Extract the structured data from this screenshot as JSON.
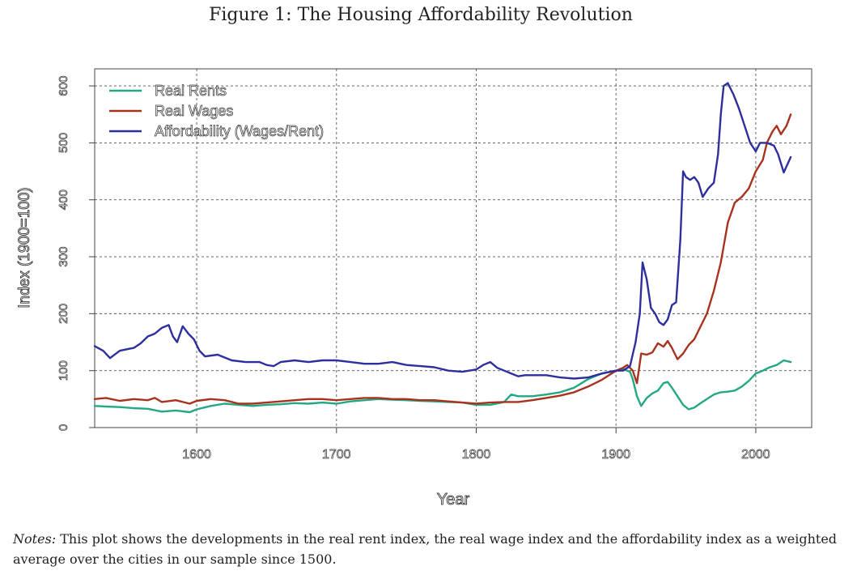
{
  "figure": {
    "title": "Figure 1: The Housing Affordability Revolution",
    "notes_lead": "Notes:",
    "notes_text": " This plot shows the developments in the real rent index, the real wage index and the affordability index as a weighted average over the cities in our sample since 1500."
  },
  "chart_data": {
    "type": "line",
    "xlabel": "Year",
    "ylabel": "Index (1900=100)",
    "xlim": [
      1527,
      2040
    ],
    "ylim": [
      0,
      630
    ],
    "xticks": [
      1600,
      1700,
      1800,
      1900,
      2000
    ],
    "yticks": [
      0,
      100,
      200,
      300,
      400,
      500,
      600
    ],
    "grid": true,
    "legend": "top-left",
    "series": [
      {
        "name": "Real Rents",
        "color": "#22a884",
        "points": [
          [
            1527,
            38
          ],
          [
            1535,
            37
          ],
          [
            1545,
            36
          ],
          [
            1555,
            34
          ],
          [
            1565,
            33
          ],
          [
            1575,
            28
          ],
          [
            1585,
            30
          ],
          [
            1595,
            27
          ],
          [
            1600,
            32
          ],
          [
            1610,
            38
          ],
          [
            1620,
            42
          ],
          [
            1630,
            40
          ],
          [
            1640,
            38
          ],
          [
            1650,
            40
          ],
          [
            1660,
            41
          ],
          [
            1670,
            43
          ],
          [
            1680,
            42
          ],
          [
            1690,
            44
          ],
          [
            1700,
            42
          ],
          [
            1710,
            46
          ],
          [
            1720,
            48
          ],
          [
            1730,
            50
          ],
          [
            1740,
            49
          ],
          [
            1750,
            48
          ],
          [
            1760,
            47
          ],
          [
            1770,
            46
          ],
          [
            1780,
            45
          ],
          [
            1790,
            44
          ],
          [
            1800,
            40
          ],
          [
            1810,
            40
          ],
          [
            1820,
            45
          ],
          [
            1825,
            58
          ],
          [
            1830,
            55
          ],
          [
            1840,
            55
          ],
          [
            1850,
            58
          ],
          [
            1860,
            62
          ],
          [
            1870,
            70
          ],
          [
            1880,
            85
          ],
          [
            1890,
            95
          ],
          [
            1900,
            100
          ],
          [
            1905,
            103
          ],
          [
            1910,
            98
          ],
          [
            1912,
            85
          ],
          [
            1915,
            55
          ],
          [
            1918,
            38
          ],
          [
            1922,
            52
          ],
          [
            1926,
            60
          ],
          [
            1930,
            65
          ],
          [
            1934,
            78
          ],
          [
            1937,
            80
          ],
          [
            1940,
            70
          ],
          [
            1944,
            55
          ],
          [
            1948,
            40
          ],
          [
            1952,
            32
          ],
          [
            1956,
            35
          ],
          [
            1960,
            42
          ],
          [
            1965,
            50
          ],
          [
            1970,
            58
          ],
          [
            1975,
            62
          ],
          [
            1980,
            63
          ],
          [
            1985,
            65
          ],
          [
            1990,
            72
          ],
          [
            1995,
            82
          ],
          [
            2000,
            95
          ],
          [
            2005,
            100
          ],
          [
            2010,
            106
          ],
          [
            2015,
            110
          ],
          [
            2020,
            118
          ],
          [
            2025,
            115
          ]
        ]
      },
      {
        "name": "Real Wages",
        "color": "#a8321d",
        "points": [
          [
            1527,
            50
          ],
          [
            1535,
            52
          ],
          [
            1545,
            47
          ],
          [
            1555,
            50
          ],
          [
            1565,
            48
          ],
          [
            1570,
            52
          ],
          [
            1575,
            45
          ],
          [
            1585,
            48
          ],
          [
            1595,
            42
          ],
          [
            1600,
            47
          ],
          [
            1610,
            50
          ],
          [
            1620,
            48
          ],
          [
            1630,
            42
          ],
          [
            1640,
            42
          ],
          [
            1650,
            44
          ],
          [
            1660,
            46
          ],
          [
            1670,
            48
          ],
          [
            1680,
            50
          ],
          [
            1690,
            50
          ],
          [
            1700,
            48
          ],
          [
            1710,
            50
          ],
          [
            1720,
            52
          ],
          [
            1730,
            52
          ],
          [
            1740,
            50
          ],
          [
            1750,
            50
          ],
          [
            1760,
            48
          ],
          [
            1770,
            48
          ],
          [
            1780,
            46
          ],
          [
            1790,
            44
          ],
          [
            1800,
            42
          ],
          [
            1810,
            44
          ],
          [
            1820,
            45
          ],
          [
            1830,
            45
          ],
          [
            1840,
            48
          ],
          [
            1850,
            52
          ],
          [
            1860,
            56
          ],
          [
            1870,
            62
          ],
          [
            1880,
            72
          ],
          [
            1890,
            84
          ],
          [
            1900,
            100
          ],
          [
            1905,
            105
          ],
          [
            1908,
            110
          ],
          [
            1912,
            100
          ],
          [
            1915,
            78
          ],
          [
            1918,
            130
          ],
          [
            1922,
            128
          ],
          [
            1926,
            132
          ],
          [
            1930,
            148
          ],
          [
            1934,
            142
          ],
          [
            1937,
            152
          ],
          [
            1940,
            140
          ],
          [
            1944,
            120
          ],
          [
            1948,
            130
          ],
          [
            1952,
            145
          ],
          [
            1956,
            155
          ],
          [
            1960,
            175
          ],
          [
            1965,
            200
          ],
          [
            1970,
            240
          ],
          [
            1975,
            290
          ],
          [
            1980,
            360
          ],
          [
            1985,
            395
          ],
          [
            1990,
            405
          ],
          [
            1995,
            420
          ],
          [
            2000,
            450
          ],
          [
            2005,
            470
          ],
          [
            2008,
            500
          ],
          [
            2012,
            520
          ],
          [
            2015,
            530
          ],
          [
            2018,
            515
          ],
          [
            2022,
            530
          ],
          [
            2025,
            550
          ]
        ]
      },
      {
        "name": "Affordability (Wages/Rent)",
        "color": "#2e2f9e",
        "points": [
          [
            1527,
            143
          ],
          [
            1533,
            135
          ],
          [
            1538,
            122
          ],
          [
            1545,
            135
          ],
          [
            1555,
            140
          ],
          [
            1560,
            148
          ],
          [
            1565,
            160
          ],
          [
            1570,
            165
          ],
          [
            1575,
            175
          ],
          [
            1580,
            180
          ],
          [
            1583,
            160
          ],
          [
            1586,
            150
          ],
          [
            1590,
            178
          ],
          [
            1594,
            165
          ],
          [
            1598,
            155
          ],
          [
            1602,
            135
          ],
          [
            1606,
            125
          ],
          [
            1615,
            128
          ],
          [
            1625,
            118
          ],
          [
            1635,
            115
          ],
          [
            1645,
            115
          ],
          [
            1650,
            110
          ],
          [
            1655,
            108
          ],
          [
            1660,
            115
          ],
          [
            1670,
            118
          ],
          [
            1680,
            115
          ],
          [
            1690,
            118
          ],
          [
            1700,
            118
          ],
          [
            1710,
            115
          ],
          [
            1720,
            112
          ],
          [
            1730,
            112
          ],
          [
            1740,
            115
          ],
          [
            1750,
            110
          ],
          [
            1760,
            108
          ],
          [
            1770,
            106
          ],
          [
            1780,
            100
          ],
          [
            1790,
            98
          ],
          [
            1800,
            102
          ],
          [
            1805,
            110
          ],
          [
            1810,
            115
          ],
          [
            1815,
            105
          ],
          [
            1820,
            100
          ],
          [
            1825,
            95
          ],
          [
            1830,
            90
          ],
          [
            1835,
            92
          ],
          [
            1840,
            92
          ],
          [
            1850,
            92
          ],
          [
            1860,
            88
          ],
          [
            1870,
            86
          ],
          [
            1880,
            88
          ],
          [
            1890,
            95
          ],
          [
            1900,
            100
          ],
          [
            1905,
            100
          ],
          [
            1910,
            108
          ],
          [
            1914,
            150
          ],
          [
            1917,
            200
          ],
          [
            1919,
            290
          ],
          [
            1922,
            260
          ],
          [
            1925,
            210
          ],
          [
            1928,
            200
          ],
          [
            1931,
            185
          ],
          [
            1934,
            180
          ],
          [
            1937,
            190
          ],
          [
            1940,
            215
          ],
          [
            1943,
            220
          ],
          [
            1946,
            330
          ],
          [
            1948,
            450
          ],
          [
            1950,
            440
          ],
          [
            1953,
            435
          ],
          [
            1956,
            440
          ],
          [
            1959,
            430
          ],
          [
            1962,
            405
          ],
          [
            1966,
            420
          ],
          [
            1970,
            430
          ],
          [
            1973,
            480
          ],
          [
            1975,
            550
          ],
          [
            1977,
            600
          ],
          [
            1980,
            605
          ],
          [
            1984,
            585
          ],
          [
            1988,
            560
          ],
          [
            1992,
            530
          ],
          [
            1996,
            500
          ],
          [
            2000,
            485
          ],
          [
            2003,
            500
          ],
          [
            2008,
            500
          ],
          [
            2013,
            495
          ],
          [
            2016,
            480
          ],
          [
            2020,
            448
          ],
          [
            2025,
            475
          ]
        ]
      }
    ]
  }
}
